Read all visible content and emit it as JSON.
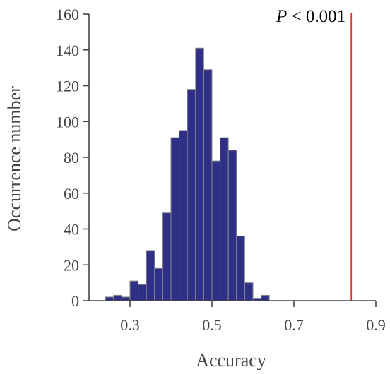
{
  "chart_data": {
    "type": "bar",
    "xlabel": "Accuracy",
    "ylabel": "Occurrence number",
    "xlim": [
      0.2,
      0.9
    ],
    "ylim": [
      0,
      160
    ],
    "xticks": [
      "0.3",
      "0.5",
      "0.7",
      "0.9"
    ],
    "yticks": [
      "0",
      "20",
      "40",
      "60",
      "80",
      "100",
      "120",
      "140",
      "160"
    ],
    "bin_width": 0.02,
    "bins": [
      {
        "x0": 0.24,
        "count": 2
      },
      {
        "x0": 0.26,
        "count": 3
      },
      {
        "x0": 0.28,
        "count": 2
      },
      {
        "x0": 0.3,
        "count": 11
      },
      {
        "x0": 0.32,
        "count": 9
      },
      {
        "x0": 0.34,
        "count": 28
      },
      {
        "x0": 0.36,
        "count": 18
      },
      {
        "x0": 0.38,
        "count": 49
      },
      {
        "x0": 0.4,
        "count": 91
      },
      {
        "x0": 0.42,
        "count": 95
      },
      {
        "x0": 0.44,
        "count": 118
      },
      {
        "x0": 0.46,
        "count": 141
      },
      {
        "x0": 0.48,
        "count": 129
      },
      {
        "x0": 0.5,
        "count": 78
      },
      {
        "x0": 0.52,
        "count": 91
      },
      {
        "x0": 0.54,
        "count": 84
      },
      {
        "x0": 0.56,
        "count": 36
      },
      {
        "x0": 0.58,
        "count": 10
      },
      {
        "x0": 0.6,
        "count": 1
      },
      {
        "x0": 0.62,
        "count": 3
      }
    ],
    "reference_line": {
      "x": 0.84,
      "label_italic": "P",
      "label_rest": " < 0.001",
      "color": "#e8342c"
    },
    "bar_color": "#2e3085",
    "bar_edge_color": "#8a8a8a",
    "grid": false,
    "legend": "none"
  }
}
